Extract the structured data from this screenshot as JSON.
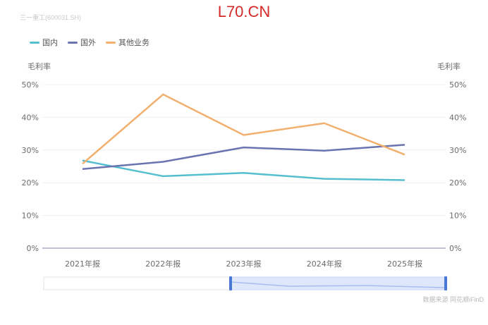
{
  "watermark": "L70.CN",
  "subtitle": "三一重工(600031.SH)",
  "source": "数据来源 同花顺iFinD",
  "chart_data": {
    "type": "line",
    "title": "",
    "categories": [
      "2021年报",
      "2022年报",
      "2023年报",
      "2024年报",
      "2025年报"
    ],
    "series": [
      {
        "name": "国内",
        "color": "#55bfcf",
        "values": [
          26.8,
          22.0,
          23.0,
          21.2,
          20.8
        ]
      },
      {
        "name": "国外",
        "color": "#6a74b0",
        "values": [
          24.2,
          26.4,
          30.8,
          29.8,
          31.6
        ]
      },
      {
        "name": "其他业务",
        "color": "#f2b06e",
        "values": [
          25.8,
          47.0,
          34.6,
          38.2,
          28.6
        ]
      }
    ],
    "ylabel_left": "毛利率",
    "ylabel_right": "毛利率",
    "yticks": [
      "0%",
      "10%",
      "20%",
      "30%",
      "40%",
      "50%"
    ],
    "ylim": [
      0,
      50
    ],
    "grid": true,
    "legend_position": "top-left",
    "data_zoom": true
  }
}
